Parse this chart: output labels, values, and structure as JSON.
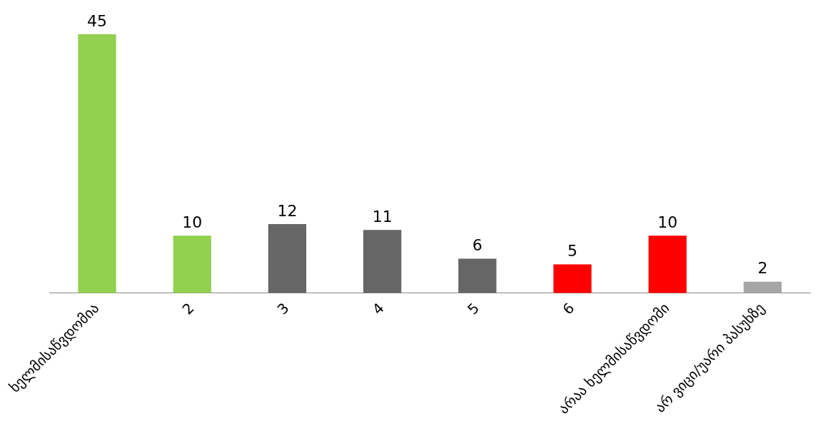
{
  "chart_data": {
    "type": "bar",
    "categories": [
      "ხელმისაწვდომია",
      "2",
      "3",
      "4",
      "5",
      "6",
      "არაა ხელმისაწვდომი",
      "არ ვიცი/უარი პასუხზე"
    ],
    "values": [
      45,
      10,
      12,
      11,
      6,
      5,
      10,
      2
    ],
    "colors": [
      "#92d050",
      "#92d050",
      "#666666",
      "#666666",
      "#666666",
      "#ff0000",
      "#ff0000",
      "#a6a6a6"
    ],
    "data_labels": true,
    "grid": false,
    "legend": false
  }
}
